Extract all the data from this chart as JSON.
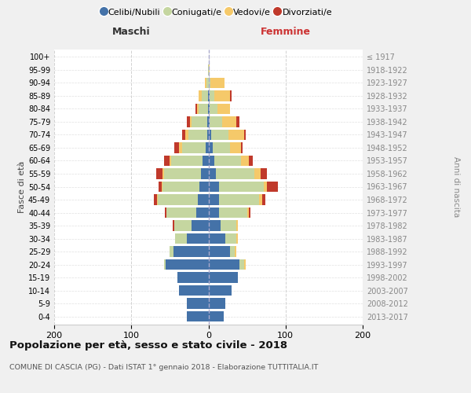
{
  "age_groups": [
    "0-4",
    "5-9",
    "10-14",
    "15-19",
    "20-24",
    "25-29",
    "30-34",
    "35-39",
    "40-44",
    "45-49",
    "50-54",
    "55-59",
    "60-64",
    "65-69",
    "70-74",
    "75-79",
    "80-84",
    "85-89",
    "90-94",
    "95-99",
    "100+"
  ],
  "birth_years": [
    "2013-2017",
    "2008-2012",
    "2003-2007",
    "1998-2002",
    "1993-1997",
    "1988-1992",
    "1983-1987",
    "1978-1982",
    "1973-1977",
    "1968-1972",
    "1963-1967",
    "1958-1962",
    "1953-1957",
    "1948-1952",
    "1943-1947",
    "1938-1942",
    "1933-1937",
    "1928-1932",
    "1923-1927",
    "1918-1922",
    "≤ 1917"
  ],
  "males": {
    "celibi": [
      28,
      28,
      38,
      40,
      55,
      45,
      28,
      22,
      16,
      14,
      12,
      10,
      8,
      4,
      2,
      2,
      1,
      1,
      0,
      0,
      0
    ],
    "coniugati": [
      0,
      0,
      0,
      0,
      2,
      5,
      15,
      22,
      38,
      52,
      48,
      48,
      40,
      30,
      24,
      20,
      12,
      8,
      3,
      1,
      0
    ],
    "vedovi": [
      0,
      0,
      0,
      0,
      0,
      0,
      0,
      0,
      0,
      1,
      1,
      2,
      2,
      4,
      4,
      2,
      2,
      4,
      2,
      0,
      0
    ],
    "divorziati": [
      0,
      0,
      0,
      0,
      0,
      0,
      0,
      2,
      2,
      4,
      4,
      8,
      8,
      6,
      4,
      4,
      2,
      0,
      0,
      0,
      0
    ]
  },
  "females": {
    "nubili": [
      20,
      22,
      30,
      38,
      40,
      28,
      22,
      16,
      14,
      14,
      14,
      10,
      8,
      6,
      4,
      2,
      2,
      2,
      1,
      0,
      0
    ],
    "coniugate": [
      0,
      0,
      0,
      0,
      6,
      6,
      14,
      20,
      36,
      52,
      58,
      50,
      34,
      22,
      22,
      16,
      10,
      6,
      2,
      0,
      0
    ],
    "vedove": [
      0,
      0,
      0,
      0,
      2,
      2,
      2,
      2,
      2,
      4,
      4,
      8,
      10,
      14,
      20,
      18,
      16,
      20,
      18,
      2,
      1
    ],
    "divorziate": [
      0,
      0,
      0,
      0,
      0,
      0,
      0,
      0,
      2,
      4,
      14,
      8,
      6,
      2,
      2,
      4,
      0,
      2,
      0,
      0,
      0
    ]
  },
  "colors": {
    "celibi_nubili": "#4472a8",
    "coniugati": "#c5d6a0",
    "vedovi": "#f5c96a",
    "divorziati": "#c0392b"
  },
  "title": "Popolazione per età, sesso e stato civile - 2018",
  "subtitle": "COMUNE DI CASCIA (PG) - Dati ISTAT 1° gennaio 2018 - Elaborazione TUTTITALIA.IT",
  "xlabel_left": "Maschi",
  "xlabel_right": "Femmine",
  "ylabel_left": "Fasce di età",
  "ylabel_right": "Anni di nascita",
  "xlim": 200,
  "background_color": "#f0f0f0",
  "plot_bg": "#ffffff",
  "legend_labels": [
    "Celibi/Nubili",
    "Coniugati/e",
    "Vedovi/e",
    "Divorziati/e"
  ]
}
